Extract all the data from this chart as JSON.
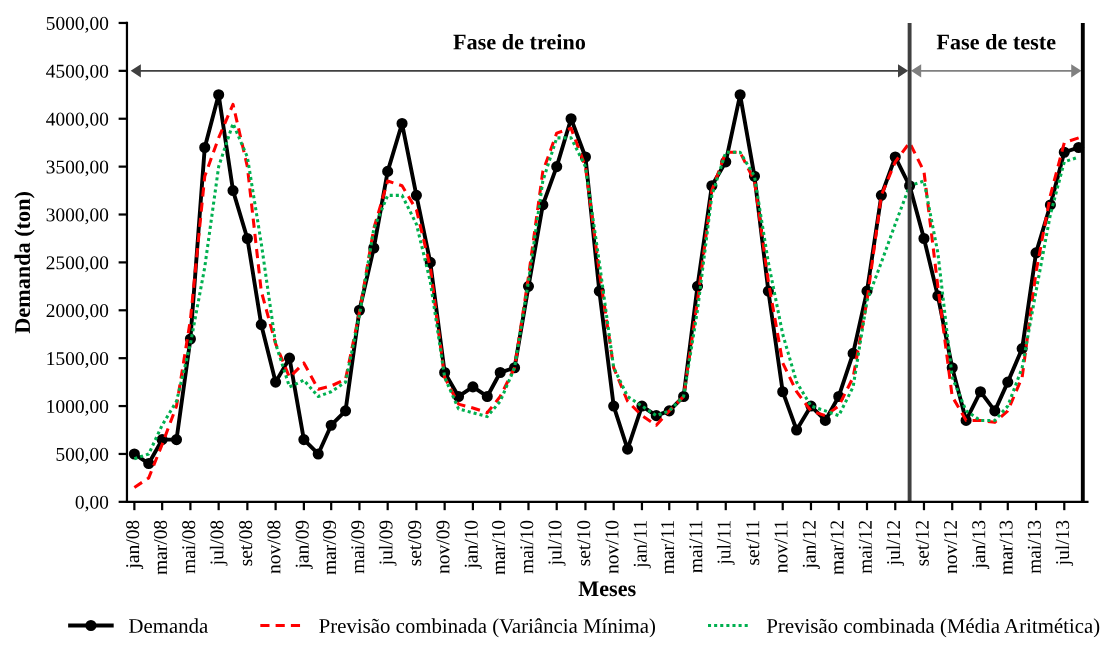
{
  "chart_data": {
    "type": "line",
    "xlabel": "Meses",
    "ylabel": "Demanda (ton)",
    "x": [
      "2008-01",
      "2008-02",
      "2008-03",
      "2008-04",
      "2008-05",
      "2008-06",
      "2008-07",
      "2008-08",
      "2008-09",
      "2008-10",
      "2008-11",
      "2008-12",
      "2009-01",
      "2009-02",
      "2009-03",
      "2009-04",
      "2009-05",
      "2009-06",
      "2009-07",
      "2009-08",
      "2009-09",
      "2009-10",
      "2009-11",
      "2009-12",
      "2010-01",
      "2010-02",
      "2010-03",
      "2010-04",
      "2010-05",
      "2010-06",
      "2010-07",
      "2010-08",
      "2010-09",
      "2010-10",
      "2010-11",
      "2010-12",
      "2011-01",
      "2011-02",
      "2011-03",
      "2011-04",
      "2011-05",
      "2011-06",
      "2011-07",
      "2011-08",
      "2011-09",
      "2011-10",
      "2011-11",
      "2011-12",
      "2012-01",
      "2012-02",
      "2012-03",
      "2012-04",
      "2012-05",
      "2012-06",
      "2012-07",
      "2012-08",
      "2012-09",
      "2012-10",
      "2012-11",
      "2012-12",
      "2013-01",
      "2013-02",
      "2013-03",
      "2013-04",
      "2013-05",
      "2013-06",
      "2013-07",
      "2013-08"
    ],
    "series": [
      {
        "name": "Demanda",
        "color": "#000000",
        "marker": "circle",
        "line_style": "solid",
        "values": [
          500,
          400,
          650,
          650,
          1700,
          3700,
          4250,
          3250,
          2750,
          1850,
          1250,
          1500,
          650,
          500,
          800,
          950,
          2000,
          2650,
          3450,
          3950,
          3200,
          2500,
          1350,
          1100,
          1200,
          1100,
          1350,
          1400,
          2250,
          3100,
          3500,
          4000,
          3600,
          2200,
          1000,
          550,
          1000,
          900,
          950,
          1100,
          2250,
          3300,
          3550,
          4250,
          3400,
          2200,
          1150,
          750,
          1000,
          850,
          1100,
          1550,
          2200,
          3200,
          3600,
          3300,
          2750,
          2150,
          1400,
          850,
          1150,
          950,
          1250,
          1600,
          2600,
          3100,
          3650,
          3700
        ]
      },
      {
        "name": "Previsão combinada (Variância Mínima)",
        "color": "#ff0000",
        "marker": "none",
        "line_style": "dashed",
        "values": [
          150,
          250,
          600,
          1000,
          1900,
          3400,
          3800,
          4150,
          3500,
          2200,
          1650,
          1300,
          1450,
          1175,
          1210,
          1280,
          1979,
          2853,
          3350,
          3300,
          3050,
          2450,
          1300,
          1020,
          980,
          930,
          1100,
          1400,
          2350,
          3450,
          3850,
          3900,
          3500,
          2400,
          1400,
          1050,
          900,
          800,
          950,
          1100,
          2100,
          3250,
          3650,
          3650,
          3350,
          2300,
          1450,
          1150,
          950,
          900,
          1000,
          1300,
          2100,
          3200,
          3550,
          3750,
          3450,
          2250,
          1100,
          850,
          850,
          830,
          950,
          1300,
          2400,
          3200,
          3750,
          3800
        ]
      },
      {
        "name": "Previsão combinada (Média Aritmética)",
        "color": "#00b050",
        "marker": "none",
        "line_style": "dotted",
        "values": [
          450,
          500,
          800,
          1050,
          1650,
          2450,
          3500,
          3950,
          3600,
          2700,
          1650,
          1200,
          1270,
          1100,
          1150,
          1250,
          1950,
          2850,
          3200,
          3200,
          2900,
          2300,
          1300,
          970,
          930,
          890,
          1050,
          1400,
          2300,
          3350,
          3800,
          3800,
          3500,
          2500,
          1400,
          1100,
          1000,
          900,
          950,
          1100,
          2000,
          3200,
          3650,
          3650,
          3400,
          2500,
          1750,
          1250,
          1000,
          950,
          900,
          1200,
          2100,
          2500,
          2900,
          3300,
          3350,
          2600,
          1300,
          950,
          850,
          850,
          1000,
          1400,
          2200,
          3000,
          3550,
          3600
        ]
      }
    ],
    "xlim": [
      "2007-12-16",
      "2013-08-20"
    ],
    "xticks": [
      {
        "value": "2008-01",
        "label": "jan/08"
      },
      {
        "value": "2008-03",
        "label": "mar/08"
      },
      {
        "value": "2008-05",
        "label": "mai/08"
      },
      {
        "value": "2008-07",
        "label": "jul/08"
      },
      {
        "value": "2008-09",
        "label": "set/08"
      },
      {
        "value": "2008-11",
        "label": "nov/08"
      },
      {
        "value": "2009-01",
        "label": "jan/09"
      },
      {
        "value": "2009-03",
        "label": "mar/09"
      },
      {
        "value": "2009-05",
        "label": "mai/09"
      },
      {
        "value": "2009-07",
        "label": "jul/09"
      },
      {
        "value": "2009-09",
        "label": "set/09"
      },
      {
        "value": "2009-11",
        "label": "nov/09"
      },
      {
        "value": "2010-01",
        "label": "jan/10"
      },
      {
        "value": "2010-03",
        "label": "mar/10"
      },
      {
        "value": "2010-05",
        "label": "mai/10"
      },
      {
        "value": "2010-07",
        "label": "jul/10"
      },
      {
        "value": "2010-09",
        "label": "set/10"
      },
      {
        "value": "2010-11",
        "label": "nov/10"
      },
      {
        "value": "2011-01",
        "label": "jan/11"
      },
      {
        "value": "2011-03",
        "label": "mar/11"
      },
      {
        "value": "2011-05",
        "label": "mai/11"
      },
      {
        "value": "2011-07",
        "label": "jul/11"
      },
      {
        "value": "2011-09",
        "label": "set/11"
      },
      {
        "value": "2011-11",
        "label": "nov/11"
      },
      {
        "value": "2012-01",
        "label": "jan/12"
      },
      {
        "value": "2012-03",
        "label": "mar/12"
      },
      {
        "value": "2012-05",
        "label": "mai/12"
      },
      {
        "value": "2012-07",
        "label": "jul/12"
      },
      {
        "value": "2012-09",
        "label": "set/12"
      },
      {
        "value": "2012-11",
        "label": "nov/12"
      },
      {
        "value": "2013-01",
        "label": "jan/13"
      },
      {
        "value": "2013-03",
        "label": "mar/13"
      },
      {
        "value": "2013-05",
        "label": "mai/13"
      },
      {
        "value": "2013-07",
        "label": "jul/13"
      }
    ],
    "ylim": [
      0,
      5000
    ],
    "yticks": [
      {
        "value": 0,
        "label": "0,00"
      },
      {
        "value": 500,
        "label": "500,00"
      },
      {
        "value": 1000,
        "label": "1000,00"
      },
      {
        "value": 1500,
        "label": "1500,00"
      },
      {
        "value": 2000,
        "label": "2000,00"
      },
      {
        "value": 2500,
        "label": "2500,00"
      },
      {
        "value": 3000,
        "label": "3000,00"
      },
      {
        "value": 3500,
        "label": "3500,00"
      },
      {
        "value": 4000,
        "label": "4000,00"
      },
      {
        "value": 4500,
        "label": "4500,00"
      },
      {
        "value": 5000,
        "label": "5000,00"
      }
    ],
    "ref_lines": [
      {
        "axis": "x",
        "value": "2012-08",
        "color": "#404040"
      },
      {
        "axis": "x",
        "value": "2013-08-10",
        "color": "#000000"
      }
    ],
    "annotations": [
      "Fase de treino",
      "Fase de teste"
    ],
    "grid": false,
    "legend": "bottom"
  }
}
